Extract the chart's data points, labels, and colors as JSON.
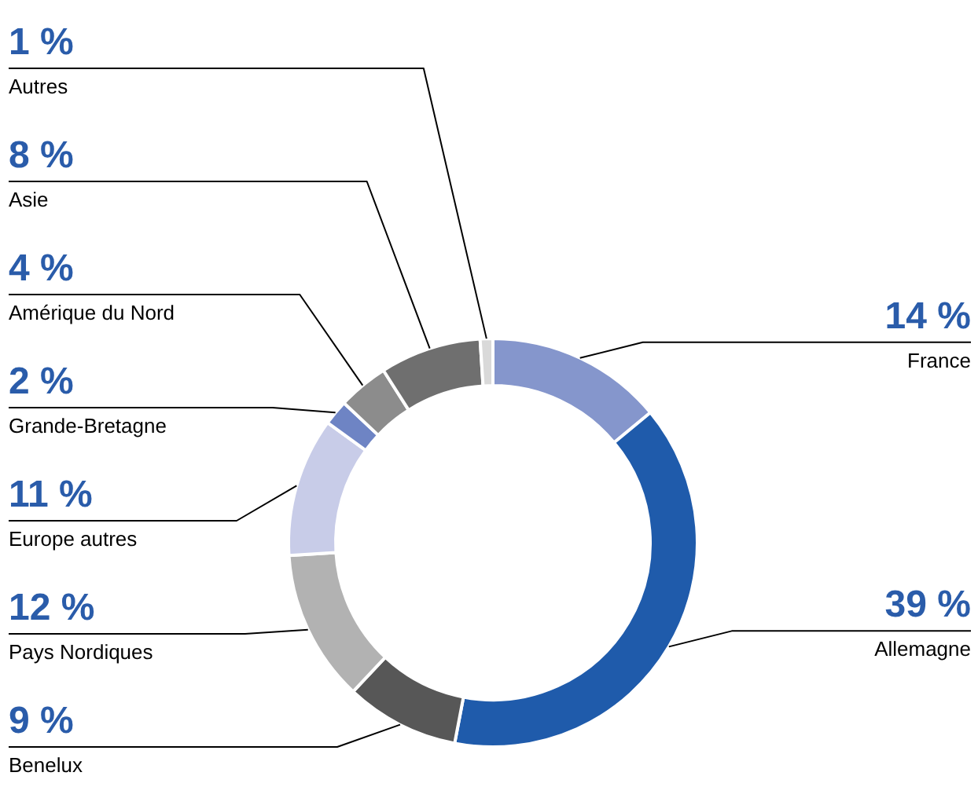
{
  "chart_data": {
    "type": "donut",
    "categories": [
      "France",
      "Allemagne",
      "Benelux",
      "Pays Nordiques",
      "Europe autres",
      "Grande-Bretagne",
      "Amérique du Nord",
      "Asie",
      "Autres"
    ],
    "values": [
      14,
      39,
      9,
      12,
      11,
      2,
      4,
      8,
      1
    ],
    "colors": [
      "#8596cc",
      "#1f5bab",
      "#575757",
      "#b2b2b2",
      "#c8cce8",
      "#6e84c4",
      "#8c8c8c",
      "#6f6f6f",
      "#d9d9d9"
    ],
    "value_labels": [
      "14 %",
      "39 %",
      "9 %",
      "12 %",
      "11 %",
      "2 %",
      "4 %",
      "8 %",
      "1 %"
    ]
  }
}
